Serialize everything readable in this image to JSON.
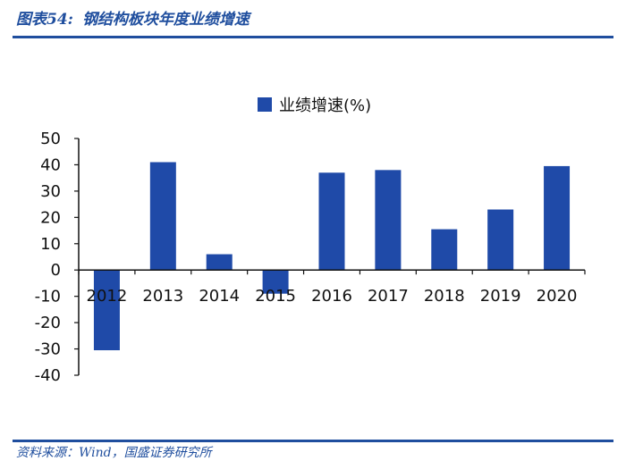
{
  "header": {
    "figure_label": "图表54:",
    "title": "钢结构板块年度业绩增速"
  },
  "footer": {
    "source": "资料来源：Wind，国盛证券研究所"
  },
  "colors": {
    "accent": "#1f4e9e",
    "bar": "#1f4aa8"
  },
  "chart_data": {
    "type": "bar",
    "title": "",
    "xlabel": "",
    "ylabel": "",
    "categories": [
      "2012",
      "2013",
      "2014",
      "2015",
      "2016",
      "2017",
      "2018",
      "2019",
      "2020"
    ],
    "series": [
      {
        "name": "业绩增速(%)",
        "values": [
          -30.5,
          41,
          6,
          -9,
          37,
          38,
          15.5,
          23,
          39.5
        ]
      }
    ],
    "ylim": [
      -40,
      50
    ],
    "yticks": [
      "50",
      "40",
      "30",
      "20",
      "10",
      "0",
      "-10",
      "-20",
      "-30",
      "-40"
    ],
    "legend_position": "top-center",
    "grid": false
  }
}
